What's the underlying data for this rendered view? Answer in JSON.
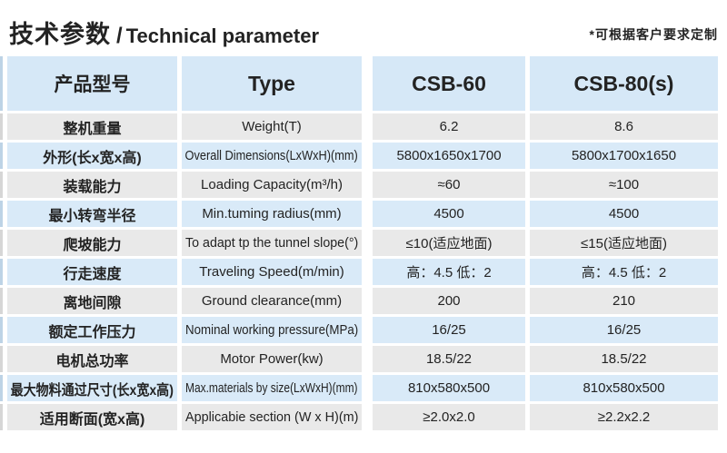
{
  "page": {
    "title_cn": "技术参数",
    "title_sep": "/",
    "title_en": "Technical parameter",
    "note": "*可根据客户要求定制"
  },
  "table": {
    "headers": [
      "产品型号",
      "Type",
      "CSB-60",
      "CSB-80(s)"
    ],
    "rows": [
      {
        "cn": "整机重量",
        "en": "Weight(T)",
        "v1": "6.2",
        "v2": "8.6"
      },
      {
        "cn": "外形(长x宽x高)",
        "en": "Overall Dimensions(LxWxH)(mm)",
        "v1": "5800x1650x1700",
        "v2": "5800x1700x1650"
      },
      {
        "cn": "装载能力",
        "en": "Loading Capacity(m³/h)",
        "v1": "≈60",
        "v2": "≈100"
      },
      {
        "cn": "最小转弯半径",
        "en": "Min.tuming radius(mm)",
        "v1": "4500",
        "v2": "4500"
      },
      {
        "cn": "爬坡能力",
        "en": "To adapt tp the tunnel slope(°)",
        "v1": "≤10(适应地面)",
        "v2": "≤15(适应地面)"
      },
      {
        "cn": "行走速度",
        "en": "Traveling Speed(m/min)",
        "v1": "高：4.5 低：2",
        "v2": "高：4.5 低：2"
      },
      {
        "cn": "离地间隙",
        "en": "Ground clearance(mm)",
        "v1": "200",
        "v2": "210"
      },
      {
        "cn": "额定工作压力",
        "en": "Nominal working pressure(MPa)",
        "v1": "16/25",
        "v2": "16/25"
      },
      {
        "cn": "电机总功率",
        "en": "Motor Power(kw)",
        "v1": "18.5/22",
        "v2": "18.5/22"
      },
      {
        "cn": "最大物料通过尺寸(长x宽x高)",
        "en": "Max.materials by size(LxWxH)(mm)",
        "v1": "810x580x500",
        "v2": "810x580x500"
      },
      {
        "cn": "适用断面(宽x高)",
        "en": "Applicabie section (W x H)(m)",
        "v1": "≥2.0x2.0",
        "v2": "≥2.2x2.2"
      }
    ]
  },
  "colors": {
    "row_gray": "#e9e9e9",
    "row_blue": "#d9eaf8",
    "header_blue": "#d6e8f7",
    "strip_gray": "#d6d6d6",
    "strip_blue": "#bdd3e6",
    "text": "#232323"
  }
}
